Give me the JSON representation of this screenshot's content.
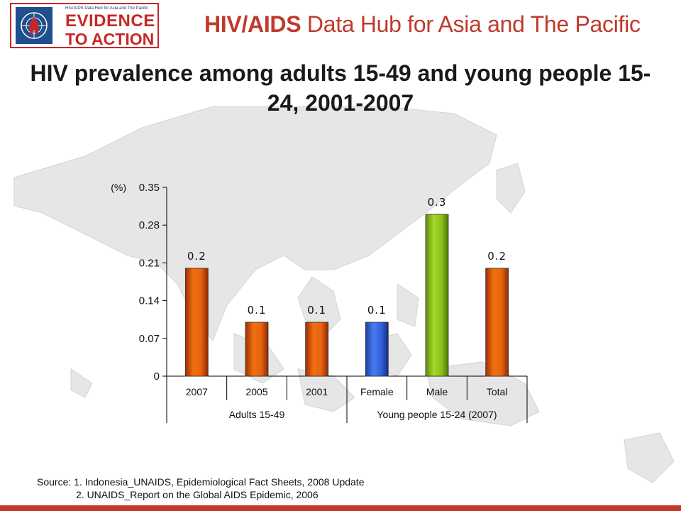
{
  "header": {
    "logo_small_text": "HIV/AIDS Data Hub for Asia and The Pacific",
    "logo_line1": "EVIDENCE",
    "logo_line2": "TO ACTION",
    "hub_title_bold": "HIV/AIDS",
    "hub_title_rest": " Data Hub for Asia and The Pacific"
  },
  "title": "HIV prevalence among adults 15-49 and young people 15-24, 2001-2007",
  "source": {
    "line1": "Source: 1. Indonesia_UNAIDS, Epidemiological Fact Sheets, 2008 Update",
    "line2": "2. UNAIDS_Report on the Global AIDS Epidemic, 2006"
  },
  "colors": {
    "accent": "#c0392b",
    "bar_orange": "#e8620f",
    "bar_blue": "#2f5fd8",
    "bar_green": "#8cc11a"
  },
  "chart_data": {
    "type": "bar",
    "ylabel": "(%)",
    "ylim": [
      0,
      0.35
    ],
    "yticks": [
      "0",
      "0.07",
      "0.14",
      "0.21",
      "0.28",
      "0.35"
    ],
    "categories": [
      "2007",
      "2005",
      "2001",
      "Female",
      "Male",
      "Total"
    ],
    "values": [
      0.2,
      0.1,
      0.1,
      0.1,
      0.3,
      0.2
    ],
    "data_labels": [
      "0.2",
      "0.1",
      "0.1",
      "0.1",
      "0.3",
      "0.2"
    ],
    "bar_colors": [
      "orange",
      "orange",
      "orange",
      "blue",
      "green",
      "orange"
    ],
    "groups": [
      {
        "label": "Adults 15-49",
        "span": 3
      },
      {
        "label": "Young people 15-24 (2007)",
        "span": 3
      }
    ],
    "grid": false
  }
}
